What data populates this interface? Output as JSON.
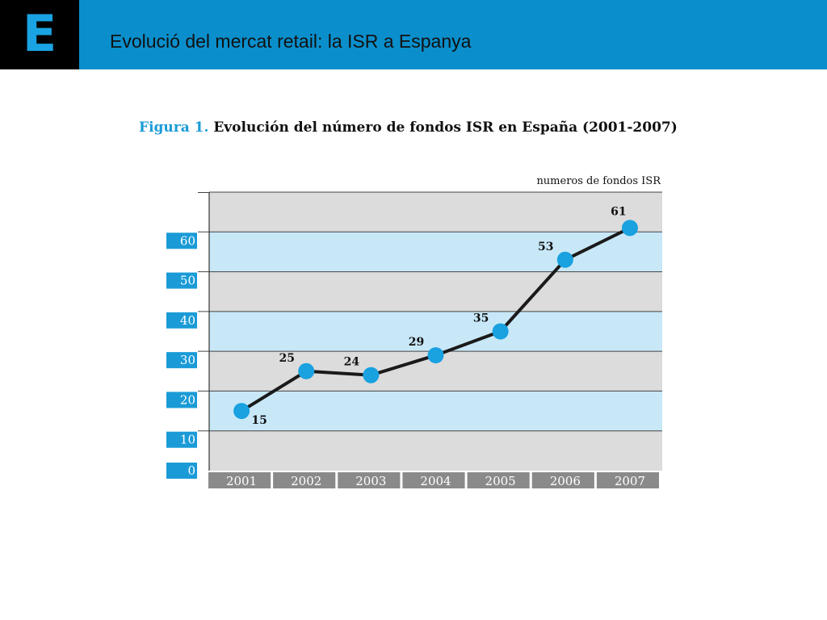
{
  "header": {
    "logo_letter": "E",
    "title": "Evolució del mercat retail: la ISR a Espanya"
  },
  "figure": {
    "label": "Figura 1.",
    "caption": "Evolución del número de fondos ISR en España (2001-2007)"
  },
  "colors": {
    "header_bg": "#0a8fcc",
    "logo_bg": "#000000",
    "logo_letter": "#1aa3e3",
    "band_light": "#c8e8f8",
    "band_gray": "#dcdcdc",
    "tick_box": "#1a9bd7",
    "year_box": "#8a8a8a",
    "marker": "#19a1e0",
    "line": "#1a1a1a"
  },
  "chart_data": {
    "type": "line",
    "title": "Evolución del número de fondos ISR en España (2001-2007)",
    "unit_label": "numeros de fondos ISR",
    "categories": [
      "2001",
      "2002",
      "2003",
      "2004",
      "2005",
      "2006",
      "2007"
    ],
    "series": [
      {
        "values": [
          15,
          25,
          24,
          29,
          35,
          53,
          61
        ]
      }
    ],
    "data_labels": [
      "15",
      "25",
      "24",
      "29",
      "35",
      "53",
      "61"
    ],
    "y_ticks": [
      0,
      10,
      20,
      30,
      40,
      50,
      60
    ],
    "y_tick_labels": [
      "0",
      "10",
      "20",
      "30",
      "40",
      "50",
      "60"
    ],
    "ylim": [
      0,
      70
    ],
    "grid": true,
    "legend": "none"
  }
}
